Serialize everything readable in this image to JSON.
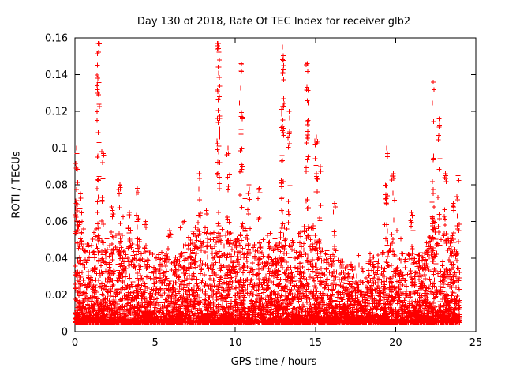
{
  "chart_data": {
    "type": "scatter",
    "title": "Day 130 of 2018, Rate Of TEC Index for receiver glb2",
    "xlabel": "GPS time / hours",
    "ylabel": "ROTI / TECUs",
    "xlim": [
      0,
      25
    ],
    "ylim": [
      0,
      0.16
    ],
    "xticks": {
      "values": [
        0,
        5,
        10,
        15,
        20,
        25
      ],
      "labels": [
        "0",
        "5",
        "10",
        "15",
        "20",
        "25"
      ]
    },
    "yticks": {
      "values": [
        0,
        0.02,
        0.04,
        0.06,
        0.08,
        0.1,
        0.12,
        0.14,
        0.16
      ],
      "labels": [
        "0",
        "0.02",
        "0.04",
        "0.06",
        "0.08",
        "0.1",
        "0.12",
        "0.14",
        "0.16"
      ]
    },
    "marker": "plus",
    "point_color": "#ff0000",
    "grid": "off",
    "legend": "none",
    "data_x_extent": [
      0,
      24
    ],
    "baseline_band": {
      "floor": 0.005,
      "typical_range": [
        0.008,
        0.035
      ],
      "points": 6000,
      "envelope": [
        [
          0,
          0.068
        ],
        [
          0.3,
          0.055
        ],
        [
          0.8,
          0.05
        ],
        [
          1.3,
          0.06
        ],
        [
          1.8,
          0.052
        ],
        [
          2.3,
          0.05
        ],
        [
          2.8,
          0.055
        ],
        [
          3.3,
          0.048
        ],
        [
          3.8,
          0.055
        ],
        [
          4.3,
          0.045
        ],
        [
          5,
          0.042
        ],
        [
          5.5,
          0.045
        ],
        [
          6,
          0.04
        ],
        [
          6.5,
          0.045
        ],
        [
          7,
          0.05
        ],
        [
          7.6,
          0.058
        ],
        [
          8,
          0.05
        ],
        [
          8.6,
          0.055
        ],
        [
          9,
          0.06
        ],
        [
          9.6,
          0.055
        ],
        [
          10,
          0.052
        ],
        [
          10.5,
          0.06
        ],
        [
          11,
          0.05
        ],
        [
          11.6,
          0.048
        ],
        [
          12,
          0.055
        ],
        [
          12.6,
          0.052
        ],
        [
          13,
          0.06
        ],
        [
          13.6,
          0.05
        ],
        [
          14,
          0.055
        ],
        [
          14.6,
          0.06
        ],
        [
          15,
          0.058
        ],
        [
          15.5,
          0.045
        ],
        [
          16,
          0.045
        ],
        [
          16.5,
          0.04
        ],
        [
          17,
          0.038
        ],
        [
          17.5,
          0.036
        ],
        [
          18,
          0.038
        ],
        [
          18.5,
          0.04
        ],
        [
          19,
          0.045
        ],
        [
          19.5,
          0.052
        ],
        [
          20,
          0.046
        ],
        [
          20.5,
          0.042
        ],
        [
          21,
          0.046
        ],
        [
          21.5,
          0.042
        ],
        [
          22,
          0.05
        ],
        [
          22.5,
          0.06
        ],
        [
          23,
          0.055
        ],
        [
          23.5,
          0.05
        ],
        [
          24,
          0.046
        ]
      ]
    },
    "spikes": [
      [
        0.1,
        0.1,
        14
      ],
      [
        0.35,
        0.075,
        8
      ],
      [
        1.45,
        0.157,
        30
      ],
      [
        1.75,
        0.1,
        10
      ],
      [
        2.3,
        0.068,
        6
      ],
      [
        2.8,
        0.08,
        8
      ],
      [
        3.4,
        0.065,
        6
      ],
      [
        3.9,
        0.078,
        8
      ],
      [
        4.4,
        0.06,
        5
      ],
      [
        5.9,
        0.055,
        5
      ],
      [
        7.75,
        0.086,
        12
      ],
      [
        8.2,
        0.066,
        6
      ],
      [
        8.95,
        0.157,
        40
      ],
      [
        9.55,
        0.1,
        12
      ],
      [
        10.35,
        0.146,
        24
      ],
      [
        10.85,
        0.08,
        8
      ],
      [
        11.5,
        0.078,
        6
      ],
      [
        12.95,
        0.155,
        34
      ],
      [
        13.35,
        0.12,
        10
      ],
      [
        14.5,
        0.146,
        28
      ],
      [
        15.05,
        0.106,
        12
      ],
      [
        15.3,
        0.09,
        6
      ],
      [
        16.2,
        0.07,
        6
      ],
      [
        19.45,
        0.1,
        14
      ],
      [
        19.85,
        0.086,
        8
      ],
      [
        21.0,
        0.065,
        6
      ],
      [
        22.35,
        0.136,
        24
      ],
      [
        22.7,
        0.116,
        10
      ],
      [
        23.1,
        0.086,
        8
      ],
      [
        23.6,
        0.07,
        6
      ],
      [
        23.9,
        0.085,
        8
      ]
    ]
  }
}
